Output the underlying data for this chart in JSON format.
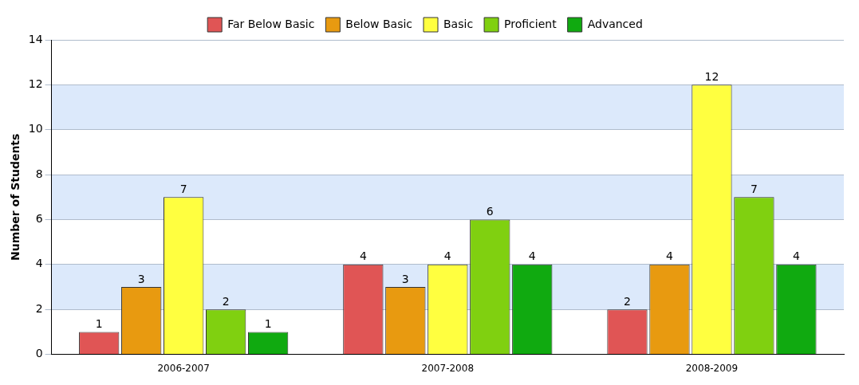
{
  "chart_data": {
    "type": "bar",
    "ylabel": "Number of Students",
    "categories": [
      "2006-2007",
      "2007-2008",
      "2008-2009"
    ],
    "series": [
      {
        "name": "Far Below Basic",
        "color": "#e05555",
        "values": [
          1,
          4,
          2
        ]
      },
      {
        "name": "Below Basic",
        "color": "#e89a10",
        "values": [
          3,
          3,
          4
        ]
      },
      {
        "name": "Basic",
        "color": "#ffff40",
        "values": [
          7,
          4,
          12
        ]
      },
      {
        "name": "Proficient",
        "color": "#80d010",
        "values": [
          2,
          6,
          7
        ]
      },
      {
        "name": "Advanced",
        "color": "#10aa10",
        "values": [
          1,
          4,
          4
        ]
      }
    ],
    "ylim": [
      0,
      14
    ],
    "yticks": [
      0,
      2,
      4,
      6,
      8,
      10,
      12,
      14
    ],
    "grid": "y",
    "legend": "top",
    "data_labels": true
  }
}
